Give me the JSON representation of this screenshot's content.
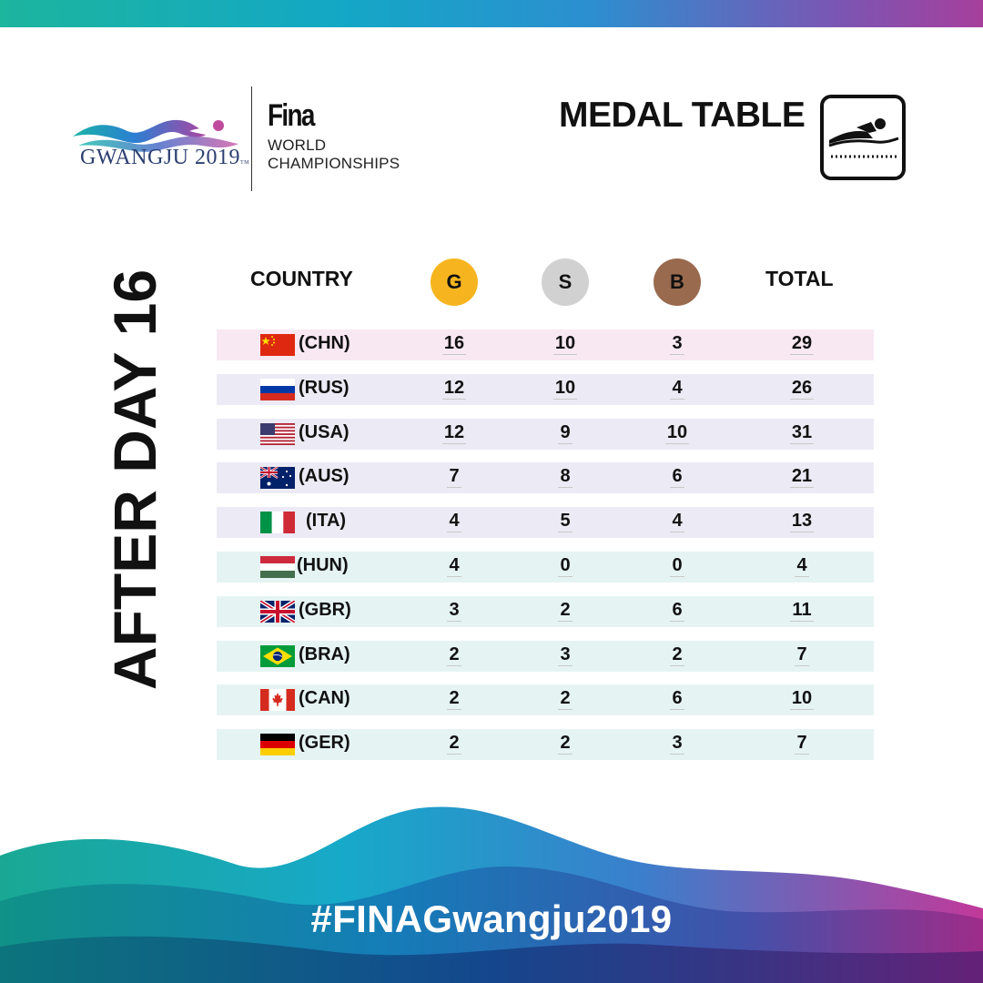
{
  "logo": {
    "city": "GWANGJU 2019",
    "tm": "TM",
    "org": "Fina",
    "line1": "WORLD",
    "line2": "CHAMPIONSHIPS"
  },
  "header": {
    "title": "MEDAL TABLE",
    "icon": "swimming-icon"
  },
  "side_label": "AFTER DAY 16",
  "columns": {
    "country": "COUNTRY",
    "gold": "G",
    "silver": "S",
    "bronze": "B",
    "total": "TOTAL"
  },
  "colors": {
    "gold": "#f6b51f",
    "silver": "#d1d1d1",
    "bronze": "#9a6a4e",
    "row_first": "#f8e8f2",
    "row_mid": "#eceaf4",
    "row_last": "#e5f4f3"
  },
  "rows": [
    {
      "code": "(CHN)",
      "flag": "china-flag-icon",
      "gold": "16",
      "silver": "10",
      "bronze": "3",
      "total": "29"
    },
    {
      "code": "(RUS)",
      "flag": "russia-flag-icon",
      "gold": "12",
      "silver": "10",
      "bronze": "4",
      "total": "26"
    },
    {
      "code": "(USA)",
      "flag": "usa-flag-icon",
      "gold": "12",
      "silver": "9",
      "bronze": "10",
      "total": "31"
    },
    {
      "code": "(AUS)",
      "flag": "australia-flag-icon",
      "gold": "7",
      "silver": "8",
      "bronze": "6",
      "total": "21"
    },
    {
      "code": "(ITA)",
      "flag": "italy-flag-icon",
      "gold": "4",
      "silver": "5",
      "bronze": "4",
      "total": "13"
    },
    {
      "code": "(HUN)",
      "flag": "hungary-flag-icon",
      "gold": "4",
      "silver": "0",
      "bronze": "0",
      "total": "4"
    },
    {
      "code": "(GBR)",
      "flag": "uk-flag-icon",
      "gold": "3",
      "silver": "2",
      "bronze": "6",
      "total": "11"
    },
    {
      "code": "(BRA)",
      "flag": "brazil-flag-icon",
      "gold": "2",
      "silver": "3",
      "bronze": "2",
      "total": "7"
    },
    {
      "code": "(CAN)",
      "flag": "canada-flag-icon",
      "gold": "2",
      "silver": "2",
      "bronze": "6",
      "total": "10"
    },
    {
      "code": "(GER)",
      "flag": "germany-flag-icon",
      "gold": "2",
      "silver": "2",
      "bronze": "3",
      "total": "7"
    }
  ],
  "hashtag": "#FINAGwangju2019"
}
